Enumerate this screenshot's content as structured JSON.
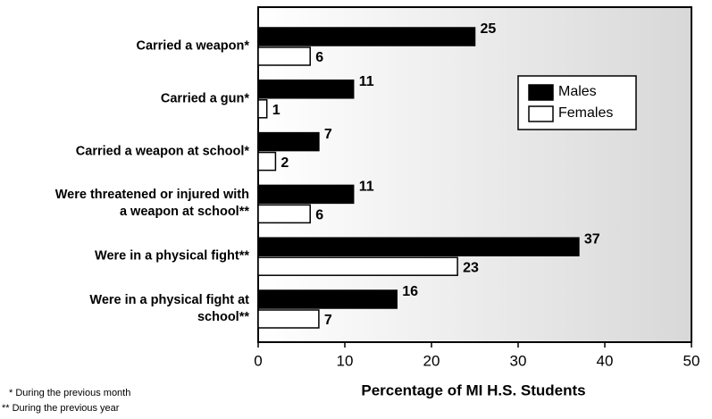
{
  "chart_data": {
    "type": "hbar",
    "categories": [
      "Carried a weapon*",
      "Carried a gun*",
      "Carried a weapon at school*",
      "Were threatened or injured with a weapon at school**",
      "Were in a physical fight**",
      "Were in a physical fight at school**"
    ],
    "series": [
      {
        "name": "Males",
        "color": "#000000",
        "values": [
          25,
          11,
          7,
          11,
          37,
          16
        ]
      },
      {
        "name": "Females",
        "color": "#ffffff",
        "values": [
          6,
          1,
          2,
          6,
          23,
          7
        ]
      }
    ],
    "xlim": [
      0,
      50
    ],
    "xticks": [
      0,
      10,
      20,
      30,
      40,
      50
    ],
    "xlabel": "Percentage of MI H.S. Students",
    "legend": "upper right",
    "footnotes": [
      "*  During the previous month",
      "**  During the previous year"
    ]
  }
}
